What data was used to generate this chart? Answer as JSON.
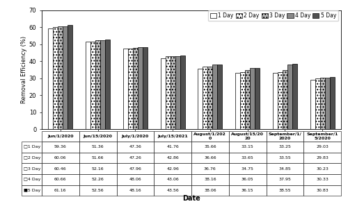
{
  "categories": [
    "Jun/1/2020",
    "Jun/15/2020",
    "July/1/2020",
    "July/15/2021",
    "August/1/2020",
    "August/15/2020",
    "September/1/2020",
    "September/15/2020"
  ],
  "x_labels": [
    "Jun/1/2020",
    "Jun/15/2020",
    "July/1/2020",
    "July/15/2021",
    "August/1/202\n0",
    "August/15/20\n20",
    "September/1/\n2020",
    "September/1\n5/2020"
  ],
  "series_keys": [
    "1 Day",
    "2 Day",
    "3 Day",
    "4 Day",
    "5 Day"
  ],
  "series": {
    "1 Day": [
      59.36,
      51.36,
      47.36,
      41.76,
      35.66,
      33.15,
      33.25,
      29.03
    ],
    "2 Day": [
      60.06,
      51.66,
      47.26,
      42.86,
      36.66,
      33.65,
      33.55,
      29.83
    ],
    "3 Day": [
      60.46,
      52.16,
      47.96,
      42.96,
      36.76,
      34.75,
      34.85,
      30.23
    ],
    "4 Day": [
      60.66,
      52.26,
      48.06,
      43.06,
      38.16,
      36.05,
      37.95,
      30.33
    ],
    "5 Day": [
      61.16,
      52.56,
      48.16,
      43.56,
      38.06,
      36.15,
      38.55,
      30.83
    ]
  },
  "table_row_labels": [
    "□1 Day",
    "□2 Day",
    "□3 Day",
    "□4 Day",
    "■5 Day"
  ],
  "col_labels": [
    "Jun/1/2020",
    "Jun/15/2020",
    "July/1/2020",
    "July/15/2021",
    "August/1/202\n0",
    "August/15/20\n20",
    "September/1/\n2020",
    "September/1\n5/2020"
  ],
  "ylabel": "Removal Efficiency (%)",
  "xlabel": "Date",
  "ylim": [
    0,
    70
  ],
  "yticks": [
    0,
    10,
    20,
    30,
    40,
    50,
    60,
    70
  ],
  "figsize": [
    5.0,
    2.94
  ],
  "dpi": 100
}
